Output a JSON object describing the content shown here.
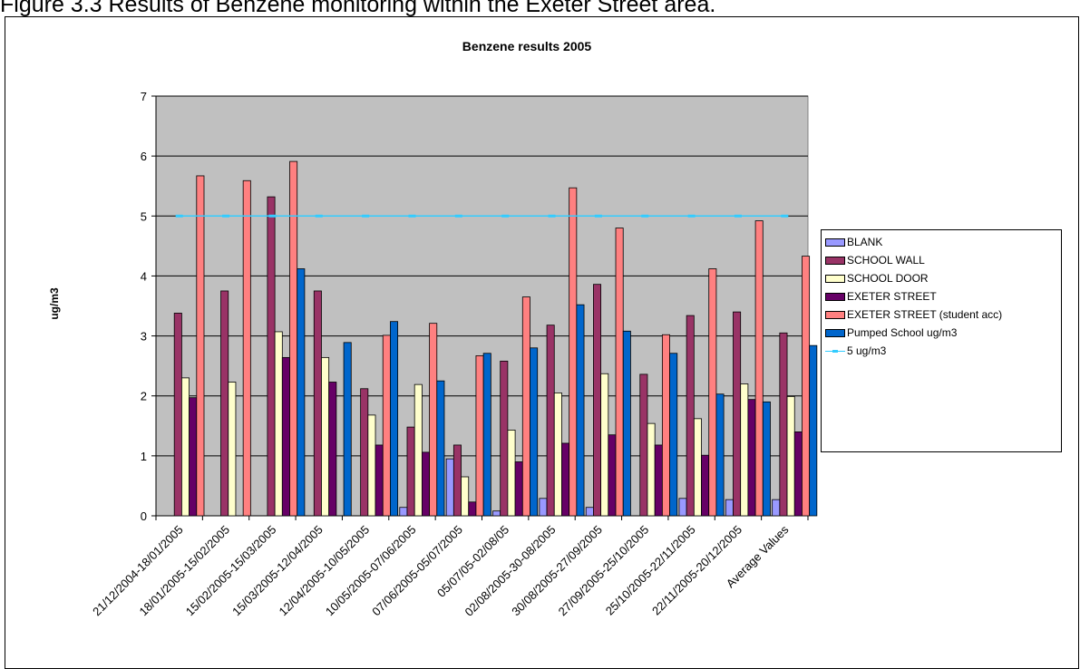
{
  "page": {
    "caption": "Figure 3.3 Results of Benzene monitoring within the Exeter Street area."
  },
  "chart_data": {
    "type": "bar",
    "title": "Benzene results 2005",
    "xlabel": "",
    "ylabel": "ug/m3",
    "ylim": [
      0,
      7
    ],
    "yticks": [
      0,
      1,
      2,
      3,
      4,
      5,
      6,
      7
    ],
    "grid": true,
    "legend_position": "right",
    "plot_background": "#c0c0c0",
    "categories": [
      "21/12/2004-18/01/2005",
      "18/01/2005-15/02/2005",
      "15/02/2005-15/03/2005",
      "15/03/2005-12/04/2005",
      "12/04/2005-10/05/2005",
      "10/05/2005-07/06/2005",
      "07/06/2005-05/07/2005",
      "05/07/05-02/08/05",
      "02/08/2005-30-08/2005",
      "30/08/2005-27/09/2005",
      "27/09/2005-25/10/2005",
      "25/10/2005-22/11/2005",
      "22/11/2005-20/12/2005",
      "Average Values"
    ],
    "series": [
      {
        "name": "BLANK",
        "color": "#9999ff",
        "values": [
          0,
          0,
          0,
          0,
          0,
          0.14,
          0.95,
          0.08,
          0.29,
          0.14,
          0,
          0.29,
          0.27,
          0.27
        ]
      },
      {
        "name": "SCHOOL WALL",
        "color": "#993366",
        "values": [
          3.38,
          3.75,
          5.32,
          3.75,
          2.12,
          1.48,
          1.18,
          2.58,
          3.18,
          3.86,
          2.36,
          3.34,
          3.4,
          3.05
        ]
      },
      {
        "name": "SCHOOL DOOR",
        "color": "#ffffcc",
        "values": [
          2.3,
          2.23,
          3.07,
          2.64,
          1.68,
          2.19,
          0.65,
          1.43,
          2.05,
          2.37,
          1.54,
          1.62,
          2.2,
          1.99
        ]
      },
      {
        "name": "EXETER STREET",
        "color": "#660066",
        "values": [
          1.97,
          0,
          2.64,
          2.23,
          1.18,
          1.06,
          0.23,
          0.9,
          1.21,
          1.35,
          1.18,
          1.01,
          1.94,
          1.4
        ]
      },
      {
        "name": "EXETER STREET (student acc)",
        "color": "#ff8080",
        "values": [
          5.67,
          5.59,
          5.91,
          0,
          3.01,
          3.21,
          2.67,
          3.65,
          5.47,
          4.8,
          3.02,
          4.12,
          4.92,
          4.33
        ]
      },
      {
        "name": "Pumped School ug/m3",
        "color": "#0066cc",
        "values": [
          0,
          0,
          4.12,
          2.89,
          3.24,
          2.25,
          2.71,
          2.8,
          3.52,
          3.08,
          2.71,
          2.03,
          1.9,
          2.84
        ]
      }
    ],
    "line_series": [
      {
        "name": "5 ug/m3",
        "color": "#33ccff",
        "values": [
          5,
          5,
          5,
          5,
          5,
          5,
          5,
          5,
          5,
          5,
          5,
          5,
          5,
          5
        ]
      }
    ]
  }
}
